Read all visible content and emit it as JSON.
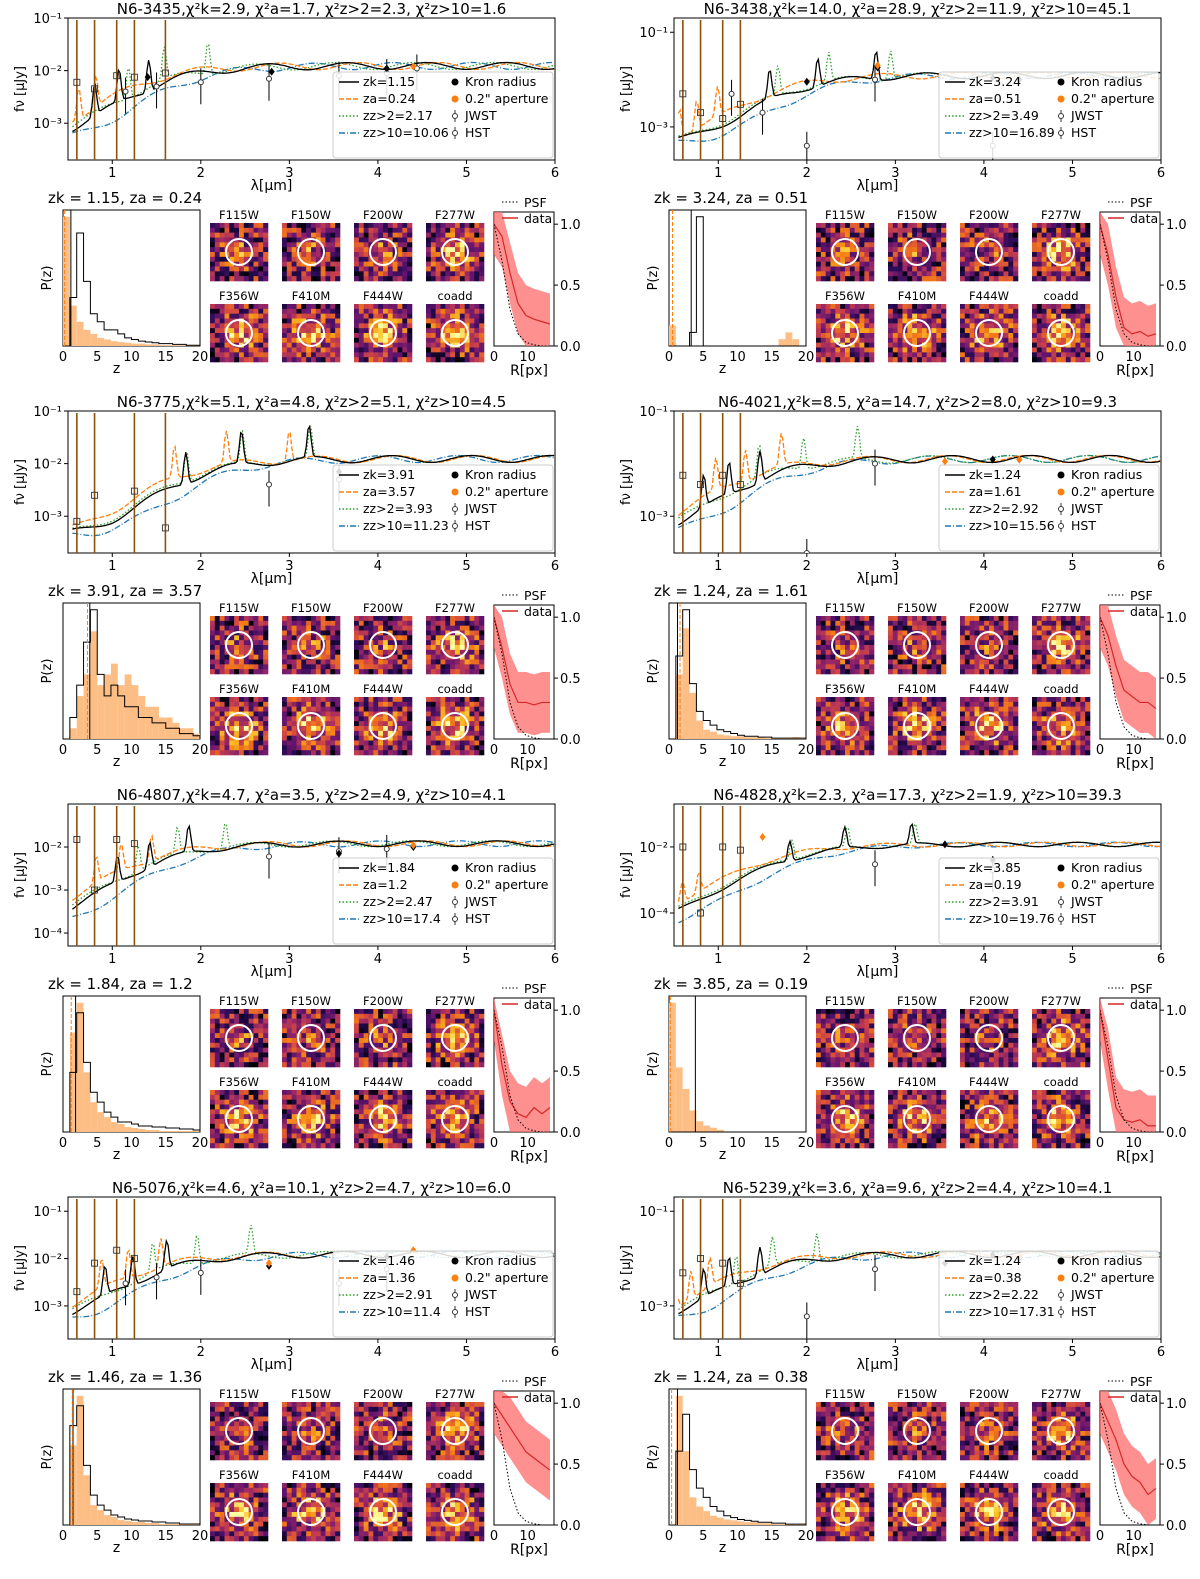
{
  "common": {
    "sed_ylabel": "fν [μJy]",
    "sed_xlabel": "λ[μm]",
    "pz_ylabel": "P(z)",
    "pz_xlabel": "z",
    "prof_xlabel": "R[px]",
    "sed_xticks": [
      "1",
      "2",
      "3",
      "4",
      "5",
      "6"
    ],
    "pz_xticks": [
      "0",
      "5",
      "10",
      "15",
      "20"
    ],
    "prof_xticks": [
      "0",
      "10"
    ],
    "prof_yticks": [
      "0.0",
      "0.5",
      "1.0"
    ],
    "stamp_filters": [
      "F115W",
      "F150W",
      "F200W",
      "F277W",
      "F356W",
      "F410M",
      "F444W",
      "coadd"
    ],
    "legend_points": [
      "Kron radius",
      "0.2\" aperture",
      "JWST",
      "HST"
    ],
    "profile_legend": [
      "PSF",
      "data"
    ],
    "colors": {
      "kron": "#000000",
      "a": "#ff7f0e",
      "z2": "#2ca02c",
      "z10": "#1f77b4",
      "hst": "#8c510a",
      "pz_fill": "#fdbe85",
      "psf_band": "#ff6b6b",
      "data_line": "#d62728"
    }
  },
  "chart_data": [
    {
      "type": "line",
      "id": "N6-3435",
      "title": "N6-3435,χ²k=2.9, χ²a=1.7, χ²z>2=2.3, χ²z>10=1.6",
      "pz_title": "zk = 1.15, za = 0.24",
      "series": [
        {
          "name": "zk=1.15",
          "z": 1.15
        },
        {
          "name": "za=0.24",
          "z": 0.24
        },
        {
          "name": "zz>2=2.17",
          "z": 2.17
        },
        {
          "name": "zz>10=10.06",
          "z": 10.06
        }
      ],
      "sed_yticks": [
        "10⁻¹",
        "10⁻²",
        "10⁻³"
      ],
      "sed_ylim": [
        0.0002,
        0.1
      ],
      "kron_points": [
        [
          1.4,
          0.0075
        ],
        [
          2.8,
          0.0095
        ],
        [
          4.1,
          0.011
        ]
      ],
      "ap_points": [
        [
          4.4,
          0.012
        ]
      ],
      "jwst_points": [
        [
          1.15,
          0.004
        ],
        [
          1.5,
          0.005
        ],
        [
          2.0,
          0.006
        ],
        [
          2.77,
          0.007
        ],
        [
          3.56,
          0.008
        ],
        [
          4.1,
          0.009
        ],
        [
          4.44,
          0.011
        ]
      ],
      "hst_points": [
        [
          0.6,
          0.006
        ],
        [
          0.8,
          0.0045
        ],
        [
          1.05,
          0.008
        ],
        [
          1.25,
          0.0075
        ],
        [
          1.6,
          0.009
        ]
      ],
      "pz_k": [
        0,
        6,
        14,
        8,
        4,
        3,
        2,
        2,
        1.5,
        1,
        0.8,
        0.6,
        0.5,
        0.4,
        0.3,
        0.3,
        0.2,
        0.2,
        0.1,
        0.1
      ],
      "pz_a": [
        16,
        5,
        3,
        2,
        1.5,
        1,
        0.8,
        0.6,
        0.5,
        0.4,
        0.3,
        0.3,
        0.2,
        0.2,
        0.1,
        0.1,
        0.1,
        0.05,
        0.05,
        0.05
      ],
      "profile_data": [
        1.0,
        0.9,
        0.6,
        0.35,
        0.25,
        0.22,
        0.2,
        0.18
      ],
      "profile_psf": [
        1.0,
        0.7,
        0.3,
        0.1,
        0.03,
        0.01,
        0,
        0
      ]
    },
    {
      "type": "line",
      "id": "N6-3438",
      "title": "N6-3438,χ²k=14.0, χ²a=28.9, χ²z>2=11.9, χ²z>10=45.1",
      "pz_title": "zk = 3.24, za = 0.51",
      "series": [
        {
          "name": "zk=3.24",
          "z": 3.24
        },
        {
          "name": "za=0.51",
          "z": 0.51
        },
        {
          "name": "zz>2=3.49",
          "z": 3.49
        },
        {
          "name": "zz>10=16.89",
          "z": 16.89
        }
      ],
      "sed_yticks": [
        "10⁻¹",
        "10⁻³"
      ],
      "sed_ylim": [
        0.0002,
        0.2
      ],
      "kron_points": [
        [
          2.0,
          0.009
        ],
        [
          2.8,
          0.018
        ],
        [
          4.1,
          0.011
        ],
        [
          4.4,
          0.01
        ]
      ],
      "ap_points": [
        [
          2.8,
          0.02
        ]
      ],
      "jwst_points": [
        [
          1.15,
          0.005
        ],
        [
          1.5,
          0.002
        ],
        [
          2.0,
          0.0004
        ],
        [
          2.77,
          0.01
        ],
        [
          4.1,
          0.0004
        ]
      ],
      "hst_points": [
        [
          0.6,
          0.005
        ],
        [
          0.8,
          0.002
        ],
        [
          1.05,
          0.0015
        ],
        [
          1.25,
          0.003
        ]
      ],
      "pz_k": [
        0,
        0,
        0,
        2,
        19,
        0,
        0,
        0,
        0,
        0,
        0,
        0,
        0,
        0,
        0,
        0,
        0,
        0,
        0,
        0
      ],
      "pz_a": [
        3,
        0,
        0,
        0,
        0,
        0,
        0,
        0,
        0,
        0,
        0,
        0,
        0,
        0,
        0,
        0,
        1,
        2,
        1,
        0
      ],
      "profile_data": [
        1.0,
        0.75,
        0.4,
        0.15,
        0.1,
        0.12,
        0.08,
        0.1
      ],
      "profile_psf": [
        1.0,
        0.7,
        0.3,
        0.1,
        0.03,
        0.01,
        0,
        0
      ]
    },
    {
      "type": "line",
      "id": "N6-3775",
      "title": "N6-3775,χ²k=5.1, χ²a=4.8, χ²z>2=5.1, χ²z>10=4.5",
      "pz_title": "zk = 3.91, za = 3.57",
      "series": [
        {
          "name": "zk=3.91",
          "z": 3.91
        },
        {
          "name": "za=3.57",
          "z": 3.57
        },
        {
          "name": "zz>2=3.93",
          "z": 3.93
        },
        {
          "name": "zz>10=11.23",
          "z": 11.23
        }
      ],
      "sed_yticks": [
        "10⁻¹",
        "10⁻²",
        "10⁻³"
      ],
      "sed_ylim": [
        0.0002,
        0.1
      ],
      "kron_points": [
        [
          3.56,
          0.007
        ]
      ],
      "ap_points": [],
      "jwst_points": [
        [
          2.77,
          0.004
        ],
        [
          3.56,
          0.005
        ]
      ],
      "hst_points": [
        [
          0.6,
          0.0008
        ],
        [
          0.8,
          0.0025
        ],
        [
          1.25,
          0.003
        ],
        [
          1.6,
          0.0006
        ]
      ],
      "pz_k": [
        0,
        2,
        5,
        9,
        12,
        6,
        4,
        5,
        4,
        3,
        3,
        2,
        2,
        1.5,
        1.5,
        1,
        1,
        0.5,
        0.5,
        0.3
      ],
      "pz_a": [
        0,
        1,
        4,
        6,
        10,
        5,
        6,
        7,
        5,
        6,
        5,
        4,
        3,
        3,
        2,
        2,
        1.5,
        1,
        1,
        0.5
      ],
      "profile_data": [
        1.0,
        0.75,
        0.45,
        0.3,
        0.3,
        0.28,
        0.3,
        0.3
      ],
      "profile_psf": [
        1.0,
        0.7,
        0.3,
        0.1,
        0.03,
        0.01,
        0,
        0
      ]
    },
    {
      "type": "line",
      "id": "N6-4021",
      "title": "N6-4021,χ²k=8.5, χ²a=14.7, χ²z>2=8.0, χ²z>10=9.3",
      "pz_title": "zk = 1.24, za = 1.61",
      "series": [
        {
          "name": "zk=1.24",
          "z": 1.24
        },
        {
          "name": "za=1.61",
          "z": 1.61
        },
        {
          "name": "zz>2=2.92",
          "z": 2.92
        },
        {
          "name": "zz>10=15.56",
          "z": 15.56
        }
      ],
      "sed_yticks": [
        "10⁻¹",
        "10⁻³"
      ],
      "sed_ylim": [
        0.0002,
        0.1
      ],
      "kron_points": [
        [
          4.1,
          0.012
        ],
        [
          4.4,
          0.012
        ]
      ],
      "ap_points": [
        [
          3.56,
          0.011
        ],
        [
          4.4,
          0.012
        ]
      ],
      "jwst_points": [
        [
          2.0,
          0.0002
        ],
        [
          2.77,
          0.01
        ]
      ],
      "hst_points": [
        [
          0.6,
          0.006
        ],
        [
          0.8,
          0.004
        ],
        [
          1.05,
          0.006
        ],
        [
          1.25,
          0.004
        ]
      ],
      "pz_k": [
        0,
        9,
        14,
        6,
        3,
        2,
        1.5,
        1,
        0.8,
        0.6,
        0.4,
        0.3,
        0.3,
        0.2,
        0.2,
        0.1,
        0.1,
        0.1,
        0.1,
        0.1
      ],
      "pz_a": [
        0,
        7,
        12,
        5,
        2,
        1,
        0.8,
        0.5,
        0.4,
        0.3,
        0.3,
        0.2,
        0.2,
        0.2,
        0.1,
        0.1,
        0.1,
        0.1,
        0.2,
        0.1
      ],
      "profile_data": [
        1.0,
        0.85,
        0.6,
        0.4,
        0.35,
        0.3,
        0.3,
        0.25
      ],
      "profile_psf": [
        1.0,
        0.7,
        0.3,
        0.1,
        0.03,
        0.01,
        0,
        0
      ]
    },
    {
      "type": "line",
      "id": "N6-4807",
      "title": "N6-4807,χ²k=4.7, χ²a=3.5, χ²z>2=4.9, χ²z>10=4.1",
      "pz_title": "zk = 1.84, za = 1.2",
      "series": [
        {
          "name": "zk=1.84",
          "z": 1.84
        },
        {
          "name": "za=1.2",
          "z": 1.2
        },
        {
          "name": "zz>2=2.47",
          "z": 2.47
        },
        {
          "name": "zz>10=17.4",
          "z": 17.4
        }
      ],
      "sed_yticks": [
        "10⁻²",
        "10⁻³",
        "10⁻⁴"
      ],
      "sed_ylim": [
        5e-05,
        0.1
      ],
      "kron_points": [
        [
          3.56,
          0.007
        ],
        [
          4.4,
          0.01
        ]
      ],
      "ap_points": [
        [
          4.4,
          0.011
        ]
      ],
      "jwst_points": [
        [
          2.77,
          0.006
        ],
        [
          3.56,
          0.008
        ],
        [
          4.1,
          0.009
        ]
      ],
      "hst_points": [
        [
          0.6,
          0.015
        ],
        [
          0.8,
          0.001
        ],
        [
          1.05,
          0.015
        ],
        [
          1.25,
          0.012
        ]
      ],
      "pz_k": [
        0,
        6,
        12,
        7,
        4,
        3,
        2,
        1.5,
        1,
        1,
        0.8,
        0.6,
        0.6,
        0.5,
        0.5,
        0.4,
        0.4,
        0.3,
        0.3,
        0.2
      ],
      "pz_a": [
        0,
        10,
        13,
        6,
        3,
        2,
        1.5,
        1,
        0.8,
        0.5,
        0.4,
        0.3,
        0.2,
        0.2,
        0.1,
        0.1,
        0.1,
        0.1,
        0.1,
        0.1
      ],
      "profile_data": [
        1.0,
        0.55,
        0.25,
        0.15,
        0.12,
        0.2,
        0.15,
        0.2
      ],
      "profile_psf": [
        1.0,
        0.7,
        0.3,
        0.1,
        0.03,
        0.01,
        0,
        0
      ]
    },
    {
      "type": "line",
      "id": "N6-4828",
      "title": "N6-4828,χ²k=2.3, χ²a=17.3, χ²z>2=1.9, χ²z>10=39.3",
      "pz_title": "zk = 3.85, za = 0.19",
      "series": [
        {
          "name": "zk=3.85",
          "z": 3.85
        },
        {
          "name": "za=0.19",
          "z": 0.19
        },
        {
          "name": "zz>2=3.91",
          "z": 3.91
        },
        {
          "name": "zz>10=19.76",
          "z": 19.76
        }
      ],
      "sed_yticks": [
        "10⁻²",
        "10⁻⁴"
      ],
      "sed_ylim": [
        1e-05,
        0.2
      ],
      "kron_points": [
        [
          3.56,
          0.012
        ],
        [
          4.1,
          0.004
        ]
      ],
      "ap_points": [
        [
          1.5,
          0.02
        ]
      ],
      "jwst_points": [
        [
          2.77,
          0.003
        ],
        [
          4.1,
          0.002
        ]
      ],
      "hst_points": [
        [
          0.6,
          0.01
        ],
        [
          0.8,
          0.0001
        ],
        [
          1.05,
          0.01
        ],
        [
          1.25,
          0.008
        ]
      ],
      "pz_k": [
        0,
        0,
        0,
        0,
        0,
        0,
        0,
        0,
        0,
        0,
        0,
        0,
        0,
        0,
        0,
        0,
        0,
        0,
        0,
        0
      ],
      "pz_a": [
        6,
        3,
        2,
        1,
        0.5,
        0.3,
        0.2,
        0.1,
        0,
        0,
        0,
        0,
        0,
        0,
        0,
        0,
        0,
        0,
        0,
        0
      ],
      "profile_data": [
        1.0,
        0.6,
        0.2,
        0.1,
        0.08,
        0.1,
        0.05,
        0.05
      ],
      "profile_psf": [
        1.0,
        0.7,
        0.3,
        0.1,
        0.03,
        0.01,
        0,
        0
      ]
    },
    {
      "type": "line",
      "id": "N6-5076",
      "title": "N6-5076,χ²k=4.6, χ²a=10.1, χ²z>2=4.7, χ²z>10=6.0",
      "pz_title": "zk = 1.46, za = 1.36",
      "series": [
        {
          "name": "zk=1.46",
          "z": 1.46
        },
        {
          "name": "za=1.36",
          "z": 1.36
        },
        {
          "name": "zz>2=2.91",
          "z": 2.91
        },
        {
          "name": "zz>10=11.4",
          "z": 11.4
        }
      ],
      "sed_yticks": [
        "10⁻¹",
        "10⁻²",
        "10⁻³"
      ],
      "sed_ylim": [
        0.0002,
        0.2
      ],
      "kron_points": [
        [
          2.77,
          0.007
        ],
        [
          4.1,
          0.011
        ]
      ],
      "ap_points": [
        [
          2.77,
          0.008
        ],
        [
          4.4,
          0.015
        ]
      ],
      "jwst_points": [
        [
          1.15,
          0.003
        ],
        [
          1.5,
          0.004
        ],
        [
          2.0,
          0.005
        ],
        [
          3.56,
          0.003
        ],
        [
          4.1,
          0.006
        ]
      ],
      "hst_points": [
        [
          0.6,
          0.002
        ],
        [
          0.8,
          0.008
        ],
        [
          1.05,
          0.015
        ],
        [
          1.25,
          0.01
        ]
      ],
      "pz_k": [
        0,
        10,
        12,
        6,
        3,
        2,
        1.5,
        1,
        0.8,
        0.6,
        0.5,
        0.4,
        0.4,
        0.3,
        0.3,
        0.2,
        0.2,
        0.1,
        0.1,
        0.1
      ],
      "pz_a": [
        0,
        8,
        13,
        5,
        2,
        1.5,
        1,
        0.8,
        0.5,
        0.4,
        0.3,
        0.3,
        0.2,
        0.2,
        0.1,
        0.1,
        0.1,
        0.1,
        0.1,
        0.1
      ],
      "profile_data": [
        1.0,
        0.9,
        0.8,
        0.7,
        0.6,
        0.55,
        0.5,
        0.45
      ],
      "profile_psf": [
        1.0,
        0.7,
        0.3,
        0.1,
        0.03,
        0.01,
        0,
        0
      ]
    },
    {
      "type": "line",
      "id": "N6-5239",
      "title": "N6-5239,χ²k=3.6, χ²a=9.6, χ²z>2=4.4, χ²z>10=4.1",
      "pz_title": "zk = 1.24, za = 0.38",
      "series": [
        {
          "name": "zk=1.24",
          "z": 1.24
        },
        {
          "name": "za=0.38",
          "z": 0.38
        },
        {
          "name": "zz>2=2.22",
          "z": 2.22
        },
        {
          "name": "zz>10=17.31",
          "z": 17.31
        }
      ],
      "sed_yticks": [
        "10⁻¹",
        "10⁻³"
      ],
      "sed_ylim": [
        0.0002,
        0.2
      ],
      "kron_points": [
        [
          3.56,
          0.008
        ],
        [
          4.1,
          0.012
        ],
        [
          4.4,
          0.01
        ]
      ],
      "ap_points": [
        [
          4.4,
          0.011
        ]
      ],
      "jwst_points": [
        [
          2.0,
          0.0006
        ],
        [
          2.77,
          0.006
        ]
      ],
      "hst_points": [
        [
          0.6,
          0.005
        ],
        [
          0.8,
          0.01
        ],
        [
          1.05,
          0.008
        ],
        [
          1.25,
          0.003
        ]
      ],
      "pz_k": [
        0,
        8,
        12,
        6,
        4,
        3,
        2,
        1.5,
        1,
        0.8,
        0.6,
        0.5,
        0.4,
        0.3,
        0.3,
        0.2,
        0.2,
        0.1,
        0.1,
        0.1
      ],
      "pz_a": [
        0,
        14,
        8,
        3,
        2,
        1.5,
        1,
        0.8,
        0.6,
        0.5,
        0.4,
        0.3,
        0.3,
        0.2,
        0.2,
        0.1,
        0.1,
        0.1,
        0.1,
        0.1
      ],
      "profile_data": [
        1.0,
        0.85,
        0.7,
        0.5,
        0.4,
        0.35,
        0.25,
        0.3
      ],
      "profile_psf": [
        1.0,
        0.7,
        0.3,
        0.1,
        0.03,
        0.01,
        0,
        0
      ]
    }
  ]
}
